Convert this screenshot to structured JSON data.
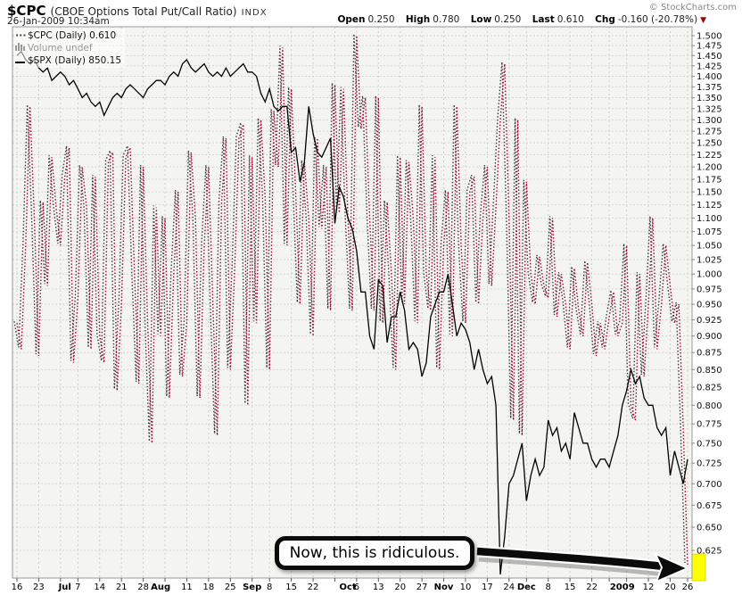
{
  "header": {
    "symbol": "$CPC",
    "name": "(CBOE Options Total Put/Call Ratio)",
    "exchange": "INDX",
    "copyright": "© StockCharts.com",
    "datetime": "26-Jan-2009 10:34am",
    "quote": {
      "open_label": "Open",
      "open": "0.250",
      "high_label": "High",
      "high": "0.780",
      "low_label": "Low",
      "low": "0.250",
      "last_label": "Last",
      "last": "0.610",
      "chg_label": "Chg",
      "chg": "-0.160 (-20.78%)"
    }
  },
  "legend": {
    "cpc": {
      "marker": "dotted-line-icon",
      "label": "$CPC (Daily) 0.610"
    },
    "volume": {
      "marker": "volume-bars-icon",
      "label": "Volume undef"
    },
    "spx": {
      "marker": "solid-line-icon",
      "label": "$SPX (Daily) 850.15"
    }
  },
  "annotation": {
    "text": "Now, this is ridiculous."
  },
  "chart_data": {
    "type": "line",
    "title": "$CPC (CBOE Options Total Put/Call Ratio) INDX",
    "subtitle": "26-Jan-2009 10:34am",
    "grid": true,
    "legend_position": "top-left",
    "y_axis": {
      "scale": "log",
      "side": "right",
      "tick_min": 0.625,
      "tick_max": 1.5,
      "tick_step": 0.025
    },
    "x_axis": {
      "gridline_day_indices": [
        0,
        5,
        10,
        14,
        19,
        24,
        29,
        34,
        39,
        44,
        49,
        54,
        58,
        63,
        68,
        73,
        78,
        83,
        88,
        93,
        98,
        103,
        108,
        113,
        117,
        122,
        127,
        132,
        136,
        140,
        145,
        150,
        154
      ],
      "tick_labels": [
        {
          "label": "16",
          "d": 0
        },
        {
          "label": "23",
          "d": 5
        },
        {
          "label": "Jul",
          "d": 11,
          "bold": true
        },
        {
          "label": "7",
          "d": 14
        },
        {
          "label": "14",
          "d": 19
        },
        {
          "label": "21",
          "d": 24
        },
        {
          "label": "28",
          "d": 29
        },
        {
          "label": "Aug",
          "d": 33,
          "bold": true
        },
        {
          "label": "11",
          "d": 39
        },
        {
          "label": "18",
          "d": 44
        },
        {
          "label": "25",
          "d": 49
        },
        {
          "label": "Sep",
          "d": 54,
          "bold": true
        },
        {
          "label": "8",
          "d": 58
        },
        {
          "label": "15",
          "d": 63
        },
        {
          "label": "22",
          "d": 68
        },
        {
          "label": "Oct",
          "d": 76,
          "bold": true
        },
        {
          "label": "6",
          "d": 78
        },
        {
          "label": "13",
          "d": 83
        },
        {
          "label": "20",
          "d": 88
        },
        {
          "label": "27",
          "d": 93
        },
        {
          "label": "Nov",
          "d": 98,
          "bold": true
        },
        {
          "label": "10",
          "d": 103
        },
        {
          "label": "17",
          "d": 108
        },
        {
          "label": "24",
          "d": 113
        },
        {
          "label": "Dec",
          "d": 117,
          "bold": true
        },
        {
          "label": "8",
          "d": 122
        },
        {
          "label": "15",
          "d": 127
        },
        {
          "label": "22",
          "d": 132
        },
        {
          "label": "2009",
          "d": 139,
          "bold": true
        },
        {
          "label": "12",
          "d": 145
        },
        {
          "label": "20",
          "d": 150
        },
        {
          "label": "26",
          "d": 154
        }
      ]
    },
    "dates": [
      "6/16",
      "6/17",
      "6/18",
      "6/19",
      "6/20",
      "6/23",
      "6/24",
      "6/25",
      "6/26",
      "6/27",
      "6/30",
      "7/1",
      "7/2",
      "7/3",
      "7/7",
      "7/8",
      "7/9",
      "7/10",
      "7/11",
      "7/14",
      "7/15",
      "7/16",
      "7/17",
      "7/18",
      "7/21",
      "7/22",
      "7/23",
      "7/24",
      "7/25",
      "7/28",
      "7/29",
      "7/30",
      "7/31",
      "8/1",
      "8/4",
      "8/5",
      "8/6",
      "8/7",
      "8/8",
      "8/11",
      "8/12",
      "8/13",
      "8/14",
      "8/15",
      "8/18",
      "8/19",
      "8/20",
      "8/21",
      "8/22",
      "8/25",
      "8/26",
      "8/27",
      "8/28",
      "8/29",
      "9/2",
      "9/3",
      "9/4",
      "9/5",
      "9/8",
      "9/9",
      "9/10",
      "9/11",
      "9/12",
      "9/15",
      "9/16",
      "9/17",
      "9/18",
      "9/19",
      "9/22",
      "9/23",
      "9/24",
      "9/25",
      "9/26",
      "9/29",
      "9/30",
      "10/1",
      "10/2",
      "10/3",
      "10/6",
      "10/7",
      "10/8",
      "10/9",
      "10/10",
      "10/13",
      "10/14",
      "10/15",
      "10/16",
      "10/17",
      "10/20",
      "10/21",
      "10/22",
      "10/23",
      "10/24",
      "10/27",
      "10/28",
      "10/29",
      "10/30",
      "10/31",
      "11/3",
      "11/4",
      "11/5",
      "11/6",
      "11/7",
      "11/10",
      "11/11",
      "11/12",
      "11/13",
      "11/14",
      "11/17",
      "11/18",
      "11/19",
      "11/20",
      "11/21",
      "11/24",
      "11/25",
      "11/26",
      "11/28",
      "12/1",
      "12/2",
      "12/3",
      "12/4",
      "12/5",
      "12/8",
      "12/9",
      "12/10",
      "12/11",
      "12/12",
      "12/15",
      "12/16",
      "12/17",
      "12/18",
      "12/19",
      "12/22",
      "12/23",
      "12/24",
      "12/26",
      "12/29",
      "12/30",
      "12/31",
      "1/2",
      "1/5",
      "1/6",
      "1/7",
      "1/8",
      "1/9",
      "1/12",
      "1/13",
      "1/14",
      "1/15",
      "1/16",
      "1/20",
      "1/21",
      "1/22",
      "1/23",
      "1/26"
    ],
    "series": [
      {
        "name": "$CPC (Daily)",
        "style": "dotted",
        "color": "#aa0033",
        "shadow_color": "#3a3a3a",
        "last": 0.61,
        "values": [
          0.92,
          0.88,
          1.05,
          1.33,
          1.1,
          0.87,
          1.13,
          0.98,
          1.22,
          1.12,
          1.05,
          1.18,
          1.24,
          0.86,
          0.96,
          1.2,
          1.12,
          0.88,
          1.18,
          0.9,
          0.86,
          1.21,
          1.23,
          0.82,
          0.95,
          1.22,
          1.24,
          1.0,
          0.83,
          1.2,
          0.92,
          0.75,
          1.12,
          0.9,
          1.1,
          0.81,
          1.0,
          1.15,
          0.84,
          0.92,
          1.23,
          1.1,
          0.81,
          1.05,
          1.2,
          0.95,
          0.76,
          1.13,
          1.26,
          0.85,
          1.01,
          1.26,
          1.29,
          0.8,
          1.22,
          0.92,
          1.3,
          1.14,
          0.85,
          1.32,
          1.2,
          1.47,
          1.05,
          1.37,
          1.15,
          0.95,
          1.21,
          1.1,
          0.9,
          1.26,
          1.08,
          1.2,
          0.94,
          1.38,
          1.11,
          1.37,
          1.1,
          0.94,
          1.5,
          1.28,
          1.35,
          1.1,
          0.94,
          1.35,
          0.92,
          1.13,
          1.0,
          0.85,
          1.22,
          0.95,
          1.21,
          1.1,
          0.92,
          1.33,
          1.0,
          0.94,
          1.22,
          0.85,
          1.05,
          1.15,
          0.9,
          1.33,
          1.05,
          0.92,
          1.15,
          1.18,
          0.95,
          1.1,
          1.2,
          0.98,
          1.12,
          1.3,
          1.43,
          1.1,
          0.78,
          1.3,
          0.76,
          1.17,
          1.0,
          0.95,
          1.03,
          0.98,
          0.96,
          1.1,
          0.93,
          1.0,
          0.95,
          0.88,
          1.01,
          0.94,
          0.9,
          1.02,
          0.95,
          0.87,
          0.92,
          0.88,
          0.93,
          0.97,
          0.9,
          0.92,
          1.05,
          0.8,
          0.78,
          1.0,
          0.84,
          0.95,
          1.1,
          0.88,
          0.95,
          1.05,
          0.98,
          0.92,
          0.95,
          0.77,
          0.61
        ]
      },
      {
        "name": "$SPX (Daily)",
        "style": "solid",
        "color": "#000000",
        "last": 850.15,
        "values": [
          1.45,
          1.46,
          1.44,
          1.43,
          1.44,
          1.42,
          1.41,
          1.42,
          1.39,
          1.4,
          1.41,
          1.4,
          1.38,
          1.39,
          1.37,
          1.35,
          1.36,
          1.34,
          1.33,
          1.34,
          1.31,
          1.33,
          1.35,
          1.36,
          1.35,
          1.37,
          1.38,
          1.37,
          1.36,
          1.35,
          1.37,
          1.38,
          1.39,
          1.39,
          1.38,
          1.4,
          1.41,
          1.4,
          1.43,
          1.44,
          1.42,
          1.41,
          1.42,
          1.43,
          1.41,
          1.4,
          1.41,
          1.4,
          1.42,
          1.4,
          1.41,
          1.42,
          1.43,
          1.41,
          1.41,
          1.4,
          1.36,
          1.34,
          1.37,
          1.33,
          1.32,
          1.33,
          1.33,
          1.23,
          1.24,
          1.17,
          1.21,
          1.33,
          1.27,
          1.23,
          1.22,
          1.24,
          1.26,
          1.09,
          1.16,
          1.14,
          1.1,
          1.08,
          1.04,
          0.97,
          0.97,
          0.9,
          0.88,
          0.99,
          0.98,
          0.89,
          0.93,
          0.93,
          0.97,
          0.94,
          0.88,
          0.89,
          0.88,
          0.84,
          0.86,
          0.93,
          0.95,
          0.97,
          0.97,
          1.0,
          0.95,
          0.9,
          0.92,
          0.91,
          0.89,
          0.85,
          0.88,
          0.85,
          0.83,
          0.84,
          0.8,
          0.6,
          0.64,
          0.7,
          0.71,
          0.73,
          0.75,
          0.68,
          0.71,
          0.73,
          0.71,
          0.72,
          0.78,
          0.76,
          0.77,
          0.74,
          0.75,
          0.73,
          0.79,
          0.77,
          0.75,
          0.75,
          0.73,
          0.72,
          0.73,
          0.73,
          0.72,
          0.74,
          0.76,
          0.8,
          0.82,
          0.85,
          0.83,
          0.84,
          0.81,
          0.8,
          0.8,
          0.77,
          0.76,
          0.77,
          0.71,
          0.74,
          0.72,
          0.7,
          0.73
        ]
      }
    ],
    "highlight": {
      "color": "#ffff00",
      "meaning": "highlights final $CPC plunge to 0.610",
      "note": "Now, this is ridiculous."
    }
  }
}
